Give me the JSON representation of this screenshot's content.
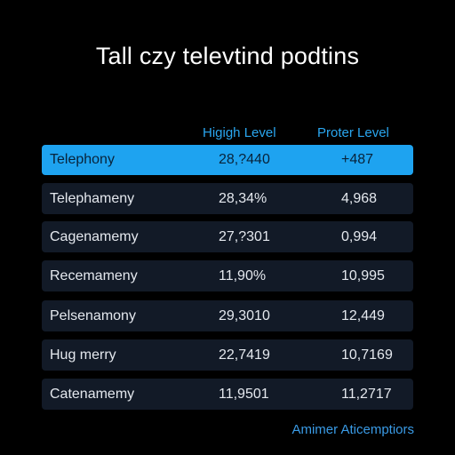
{
  "title": "Tall czy televtind podtins",
  "columns": {
    "high_level": "Higigh Level",
    "proter_level": "Proter Level"
  },
  "rows": [
    {
      "name": "Telephony",
      "high": "28,?440",
      "proter": "+487",
      "selected": true
    },
    {
      "name": "Telephameny",
      "high": "28,34%",
      "proter": "4,968",
      "selected": false
    },
    {
      "name": "Cagenamemy",
      "high": "27,?301",
      "proter": "0,994",
      "selected": false
    },
    {
      "name": "Recemameny",
      "high": "11,90%",
      "proter": "10,995",
      "selected": false
    },
    {
      "name": "Pelsenamony",
      "high": "29,3010",
      "proter": "12,449",
      "selected": false
    },
    {
      "name": "Hug merry",
      "high": "22,7419",
      "proter": "10,7169",
      "selected": false
    },
    {
      "name": "Catenamemy",
      "high": "11,9501",
      "proter": "11,2717",
      "selected": false
    }
  ],
  "footer": {
    "link_label": "Amimer Aticemptiors"
  },
  "colors": {
    "accent": "#1ea3f0",
    "row_bg": "#121a27",
    "header_text": "#2aa6ef"
  }
}
